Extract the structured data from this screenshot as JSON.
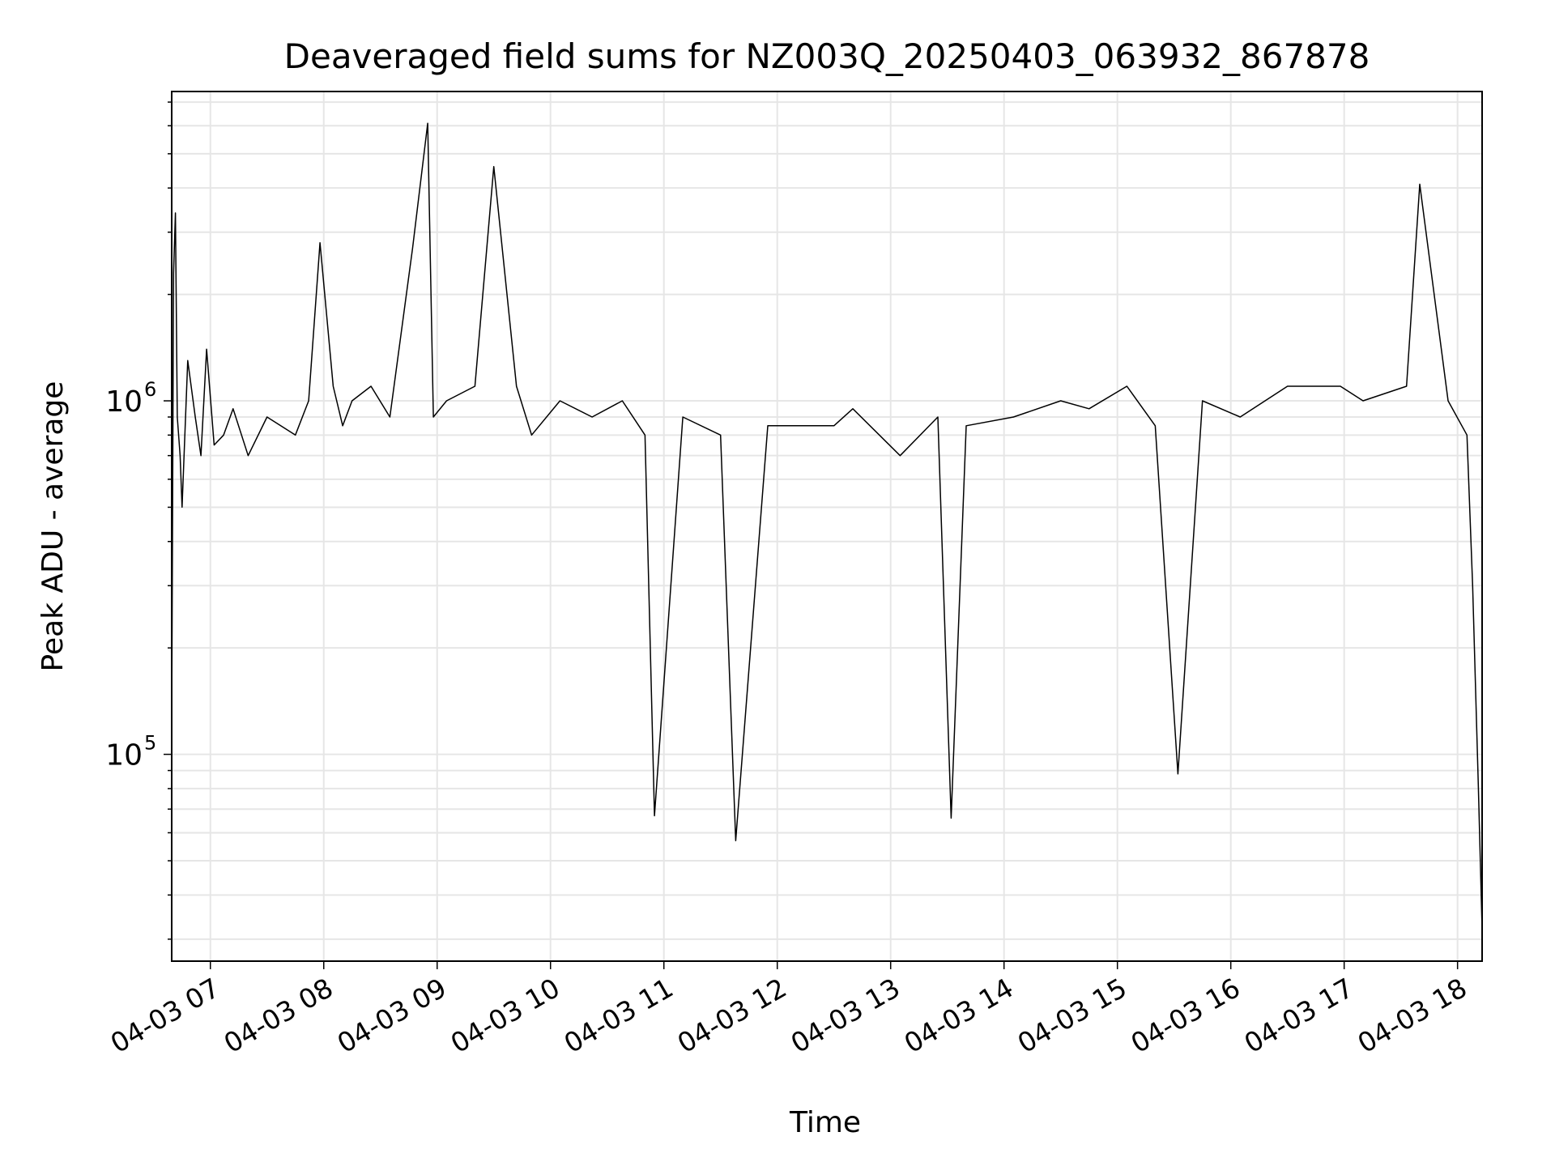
{
  "chart_data": {
    "type": "line",
    "title": "Deaveraged field sums for NZ003Q_20250403_063932_867878",
    "xlabel": "Time",
    "ylabel": "Peak ADU - average",
    "yscale": "log",
    "ylim": [
      26000,
      7500000
    ],
    "xlim": [
      "2025-04-03T06:39:32",
      "2025-04-03T18:13:00"
    ],
    "grid": true,
    "line_color": "#000000",
    "grid_color": "#e6e6e6",
    "x_ticks": [
      {
        "t": "2025-04-03T07:00:00",
        "label": "04-03 07"
      },
      {
        "t": "2025-04-03T08:00:00",
        "label": "04-03 08"
      },
      {
        "t": "2025-04-03T09:00:00",
        "label": "04-03 09"
      },
      {
        "t": "2025-04-03T10:00:00",
        "label": "04-03 10"
      },
      {
        "t": "2025-04-03T11:00:00",
        "label": "04-03 11"
      },
      {
        "t": "2025-04-03T12:00:00",
        "label": "04-03 12"
      },
      {
        "t": "2025-04-03T13:00:00",
        "label": "04-03 13"
      },
      {
        "t": "2025-04-03T14:00:00",
        "label": "04-03 14"
      },
      {
        "t": "2025-04-03T15:00:00",
        "label": "04-03 15"
      },
      {
        "t": "2025-04-03T16:00:00",
        "label": "04-03 16"
      },
      {
        "t": "2025-04-03T17:00:00",
        "label": "04-03 17"
      },
      {
        "t": "2025-04-03T18:00:00",
        "label": "04-03 18"
      }
    ],
    "y_major_ticks": [
      {
        "value": 100000,
        "base": "10",
        "exp": "5"
      },
      {
        "value": 1000000,
        "base": "10",
        "exp": "6"
      }
    ],
    "series": [
      {
        "x": [
          "2025-04-03T06:39:32",
          "2025-04-03T06:40:30",
          "2025-04-03T06:41:30",
          "2025-04-03T06:42:30",
          "2025-04-03T06:44:00",
          "2025-04-03T06:45:00",
          "2025-04-03T06:48:00",
          "2025-04-03T06:52:00",
          "2025-04-03T06:55:00",
          "2025-04-03T06:58:00",
          "2025-04-03T07:02:00",
          "2025-04-03T07:07:00",
          "2025-04-03T07:12:00",
          "2025-04-03T07:20:00",
          "2025-04-03T07:30:00",
          "2025-04-03T07:45:00",
          "2025-04-03T07:52:00",
          "2025-04-03T07:58:00",
          "2025-04-03T08:05:00",
          "2025-04-03T08:10:00",
          "2025-04-03T08:15:00",
          "2025-04-03T08:25:00",
          "2025-04-03T08:35:00",
          "2025-04-03T08:47:00",
          "2025-04-03T08:55:00",
          "2025-04-03T08:58:00",
          "2025-04-03T09:05:00",
          "2025-04-03T09:20:00",
          "2025-04-03T09:30:00",
          "2025-04-03T09:42:00",
          "2025-04-03T09:50:00",
          "2025-04-03T10:05:00",
          "2025-04-03T10:22:00",
          "2025-04-03T10:38:00",
          "2025-04-03T10:50:00",
          "2025-04-03T10:55:00",
          "2025-04-03T11:10:00",
          "2025-04-03T11:30:00",
          "2025-04-03T11:38:00",
          "2025-04-03T11:55:00",
          "2025-04-03T12:30:00",
          "2025-04-03T12:40:00",
          "2025-04-03T13:05:00",
          "2025-04-03T13:25:00",
          "2025-04-03T13:32:00",
          "2025-04-03T13:40:00",
          "2025-04-03T14:05:00",
          "2025-04-03T14:30:00",
          "2025-04-03T14:45:00",
          "2025-04-03T15:05:00",
          "2025-04-03T15:20:00",
          "2025-04-03T15:32:00",
          "2025-04-03T15:45:00",
          "2025-04-03T16:05:00",
          "2025-04-03T16:30:00",
          "2025-04-03T16:58:00",
          "2025-04-03T17:10:00",
          "2025-04-03T17:33:00",
          "2025-04-03T17:40:00",
          "2025-04-03T17:55:00",
          "2025-04-03T18:05:00",
          "2025-04-03T18:08:00",
          "2025-04-03T18:11:00",
          "2025-04-03T18:13:00"
        ],
        "y": [
          120000,
          2300000,
          3400000,
          900000,
          700000,
          500000,
          1300000,
          900000,
          700000,
          1400000,
          750000,
          800000,
          950000,
          700000,
          900000,
          800000,
          1000000,
          2800000,
          1100000,
          850000,
          1000000,
          1100000,
          900000,
          2700000,
          6100000,
          900000,
          1000000,
          1100000,
          4600000,
          1100000,
          800000,
          1000000,
          900000,
          1000000,
          800000,
          67000,
          900000,
          800000,
          57000,
          850000,
          850000,
          950000,
          700000,
          900000,
          66000,
          850000,
          900000,
          1000000,
          950000,
          1100000,
          850000,
          88000,
          1000000,
          900000,
          1100000,
          1100000,
          1000000,
          1100000,
          4100000,
          1000000,
          800000,
          300000,
          82000,
          32000
        ]
      }
    ]
  }
}
